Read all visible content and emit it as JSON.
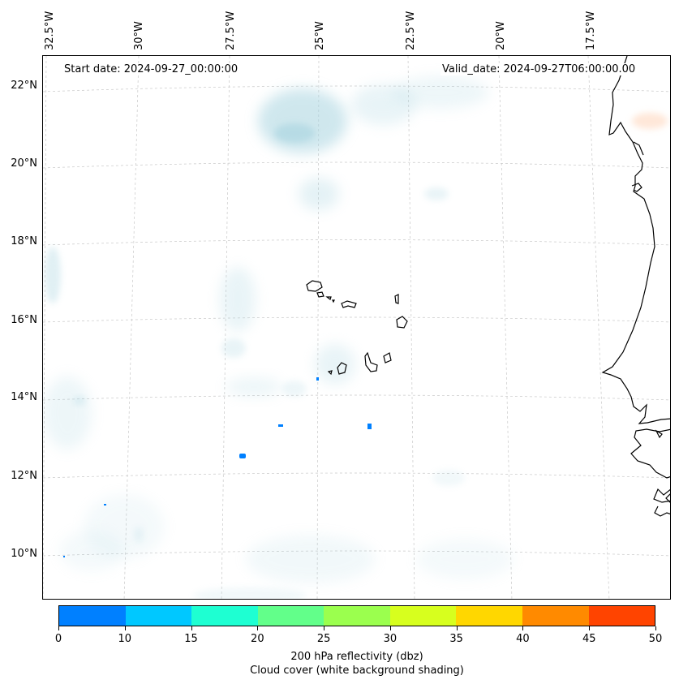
{
  "map": {
    "lon_labels": [
      "32.5°W",
      "30°W",
      "27.5°W",
      "25°W",
      "22.5°W",
      "20°W",
      "17.5°W"
    ],
    "lat_labels": [
      "22°N",
      "20°N",
      "18°N",
      "16°N",
      "14°N",
      "12°N",
      "10°N"
    ],
    "start_date": "Start date: 2024-09-27_00:00:00",
    "valid_date": "Valid_date: 2024-09-27T06:00:00.00",
    "extent": {
      "lon_min": -32.5,
      "lon_max": -15.4,
      "lat_min": 8.9,
      "lat_max": 22.7
    },
    "gridlines": true,
    "colors": {
      "coastline": "#000000",
      "cloud": "#a8d4e0",
      "grid": "#c8c8c8"
    }
  },
  "colorbar": {
    "ticks": [
      "0",
      "10",
      "15",
      "20",
      "25",
      "30",
      "35",
      "40",
      "45",
      "50"
    ],
    "colors": [
      "#0080ff",
      "#00c8ff",
      "#1effd2",
      "#62ff8a",
      "#9bff4e",
      "#d7ff1e",
      "#ffd700",
      "#ff8a00",
      "#ff4400"
    ],
    "label": "200 hPa reflectivity (dbz)",
    "sublabel": "Cloud cover (white background shading)"
  }
}
